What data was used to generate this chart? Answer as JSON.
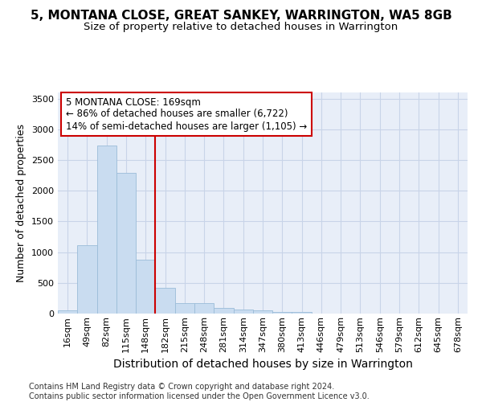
{
  "title": "5, MONTANA CLOSE, GREAT SANKEY, WARRINGTON, WA5 8GB",
  "subtitle": "Size of property relative to detached houses in Warrington",
  "xlabel": "Distribution of detached houses by size in Warrington",
  "ylabel": "Number of detached properties",
  "categories": [
    "16sqm",
    "49sqm",
    "82sqm",
    "115sqm",
    "148sqm",
    "182sqm",
    "215sqm",
    "248sqm",
    "281sqm",
    "314sqm",
    "347sqm",
    "380sqm",
    "413sqm",
    "446sqm",
    "479sqm",
    "513sqm",
    "546sqm",
    "579sqm",
    "612sqm",
    "645sqm",
    "678sqm"
  ],
  "values": [
    55,
    1110,
    2740,
    2290,
    880,
    420,
    175,
    170,
    95,
    60,
    55,
    30,
    20,
    5,
    0,
    0,
    0,
    0,
    0,
    0,
    0
  ],
  "bar_color": "#c9dcf0",
  "bar_edge_color": "#9bbcd8",
  "vline_color": "#cc0000",
  "vline_x_index": 5,
  "annotation_text": "5 MONTANA CLOSE: 169sqm\n← 86% of detached houses are smaller (6,722)\n14% of semi-detached houses are larger (1,105) →",
  "annotation_box_facecolor": "#ffffff",
  "annotation_box_edgecolor": "#cc0000",
  "ylim": [
    0,
    3600
  ],
  "yticks": [
    0,
    500,
    1000,
    1500,
    2000,
    2500,
    3000,
    3500
  ],
  "grid_color": "#c8d4e8",
  "bg_color": "#e8eef8",
  "footer": "Contains HM Land Registry data © Crown copyright and database right 2024.\nContains public sector information licensed under the Open Government Licence v3.0.",
  "title_fontsize": 11,
  "subtitle_fontsize": 9.5,
  "ylabel_fontsize": 9,
  "xlabel_fontsize": 10,
  "tick_fontsize": 8,
  "footer_fontsize": 7
}
